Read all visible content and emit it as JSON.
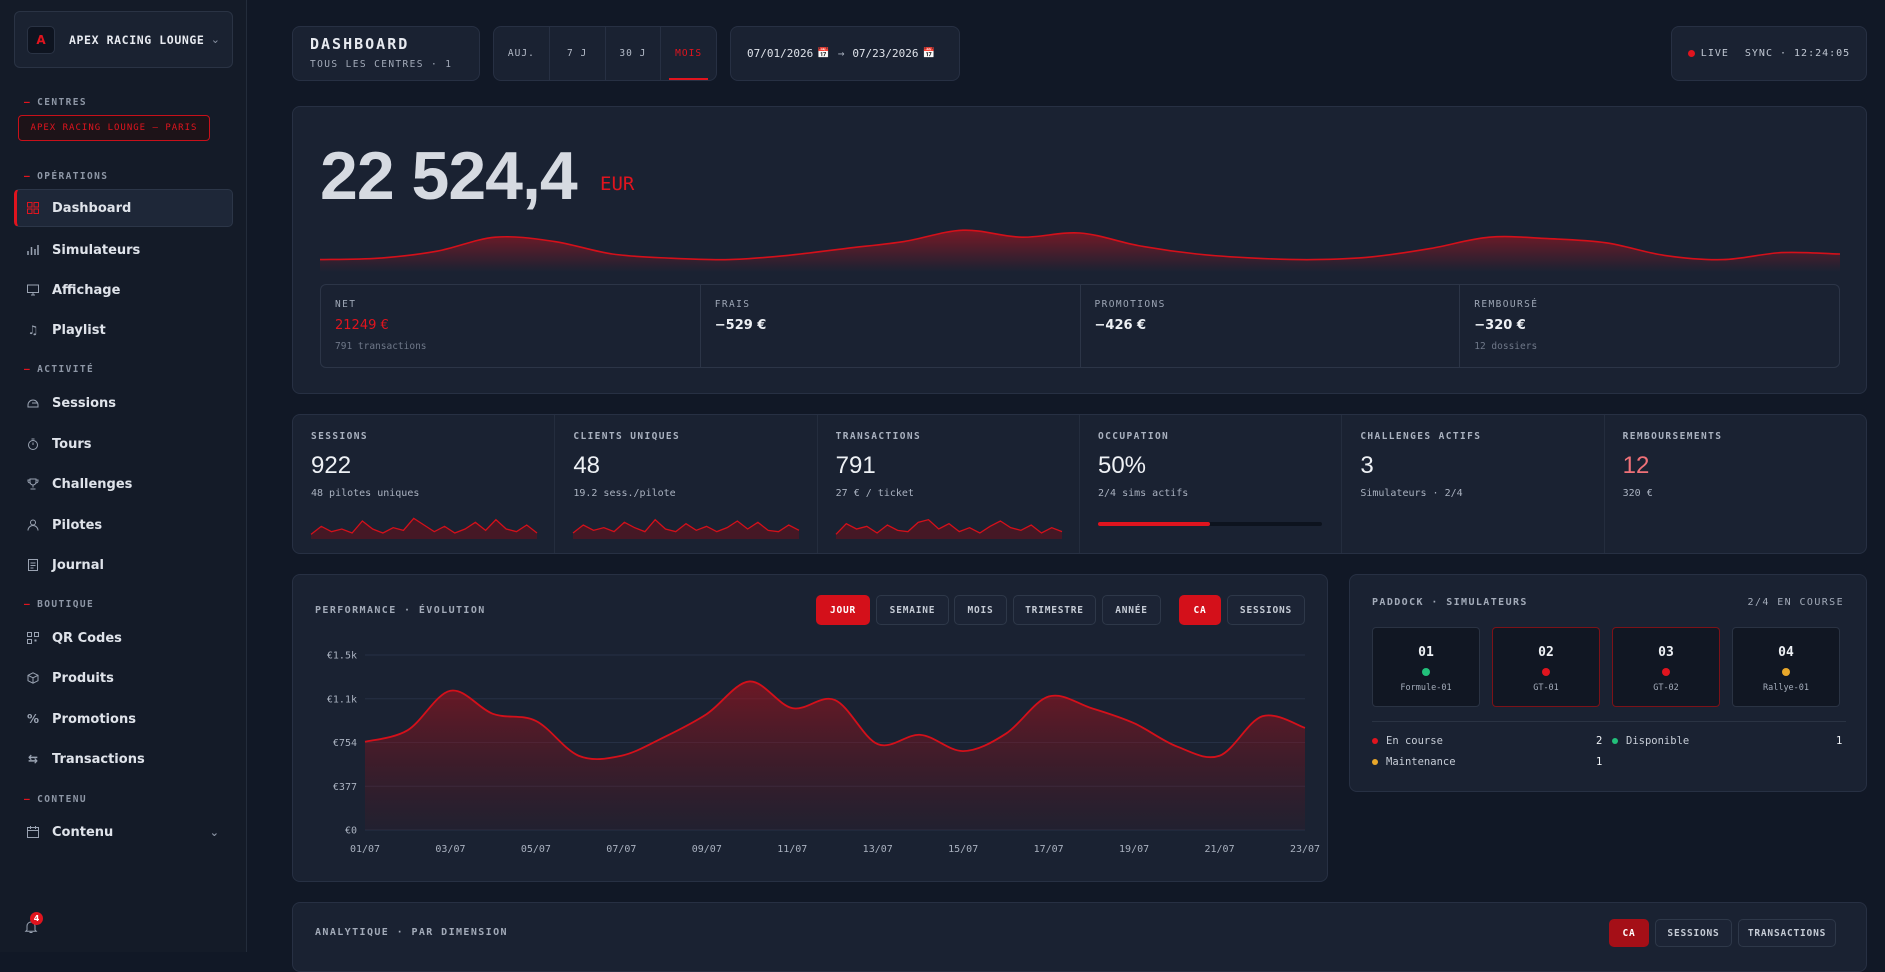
{
  "brand": {
    "logo": "A",
    "name": "APEX RACING LOUNGE"
  },
  "sidebar": {
    "sections": {
      "centres": "CENTRES",
      "operations": "OPÉRATIONS",
      "activite": "ACTIVITÉ",
      "boutique": "BOUTIQUE",
      "contenu": "CONTENU"
    },
    "centre_chip": "APEX RACING LOUNGE — PARIS",
    "items": [
      {
        "label": "Dashboard",
        "icon": "grid-icon"
      },
      {
        "label": "Simulateurs",
        "icon": "bars-icon"
      },
      {
        "label": "Affichage",
        "icon": "monitor-icon"
      },
      {
        "label": "Playlist",
        "icon": "music-icon"
      },
      {
        "label": "Sessions",
        "icon": "helmet-icon"
      },
      {
        "label": "Tours",
        "icon": "stopwatch-icon"
      },
      {
        "label": "Challenges",
        "icon": "trophy-icon"
      },
      {
        "label": "Pilotes",
        "icon": "user-icon"
      },
      {
        "label": "Journal",
        "icon": "document-icon"
      },
      {
        "label": "QR Codes",
        "icon": "qr-icon"
      },
      {
        "label": "Produits",
        "icon": "box-icon"
      },
      {
        "label": "Promotions",
        "icon": "percent-icon"
      },
      {
        "label": "Transactions",
        "icon": "swap-icon"
      },
      {
        "label": "Contenu",
        "icon": "calendar-icon"
      }
    ],
    "notifications": "4"
  },
  "header": {
    "title": "DASHBOARD",
    "subtitle": "TOUS LES CENTRES · 1",
    "periods": [
      "AUJ.",
      "7 J",
      "30 J",
      "MOIS"
    ],
    "active_period": "MOIS",
    "date_from": "07/01/2026",
    "date_to": "07/23/2026",
    "arrow": "→",
    "live": "LIVE",
    "sync": "SYNC · 12:24:05"
  },
  "hero": {
    "total": "22 524,4",
    "currency": "EUR",
    "spark": [
      6,
      7,
      12,
      22,
      19,
      10,
      7,
      6,
      9,
      14,
      19,
      27,
      22,
      25,
      16,
      10,
      7,
      6,
      8,
      14,
      22,
      21,
      18,
      9,
      6,
      11,
      10
    ],
    "stats": [
      {
        "label": "NET",
        "value": "21249 €",
        "sub": "791 transactions"
      },
      {
        "label": "FRAIS",
        "value": "−529 €",
        "sub": ""
      },
      {
        "label": "PROMOTIONS",
        "value": "−426 €",
        "sub": ""
      },
      {
        "label": "REMBOURSÉ",
        "value": "−320 €",
        "sub": "12 dossiers"
      }
    ]
  },
  "kpis": [
    {
      "label": "SESSIONS",
      "value": "922",
      "sub": "48 pilotes uniques",
      "spark": [
        2,
        8,
        4,
        6,
        3,
        12,
        6,
        3,
        7,
        5,
        14,
        9,
        4,
        8,
        3,
        6,
        11,
        5,
        13,
        6,
        4,
        9,
        3
      ]
    },
    {
      "label": "CLIENTS UNIQUES",
      "value": "48",
      "sub": "19.2 sess./pilote",
      "spark": [
        3,
        9,
        5,
        7,
        4,
        11,
        7,
        4,
        13,
        6,
        4,
        10,
        5,
        8,
        4,
        7,
        12,
        6,
        11,
        5,
        4,
        9,
        5
      ]
    },
    {
      "label": "TRANSACTIONS",
      "value": "791",
      "sub": "27 € / ticket",
      "spark": [
        2,
        10,
        6,
        8,
        3,
        9,
        5,
        4,
        11,
        13,
        6,
        10,
        4,
        7,
        3,
        8,
        12,
        7,
        5,
        9,
        3,
        7,
        4
      ]
    },
    {
      "label": "OCCUPATION",
      "value": "50%",
      "sub": "2/4 sims actifs",
      "progress": 0.5
    },
    {
      "label": "CHALLENGES ACTIFS",
      "value": "3",
      "sub": "Simulateurs · 2/4"
    },
    {
      "label": "REMBOURSEMENTS",
      "value": "12",
      "sub": "320 €"
    }
  ],
  "performance": {
    "title": "PERFORMANCE · ÉVOLUTION",
    "granularity": [
      "JOUR",
      "SEMAINE",
      "MOIS",
      "TRIMESTRE",
      "ANNÉE"
    ],
    "active_granularity": "JOUR",
    "metrics": [
      "CA",
      "SESSIONS"
    ],
    "active_metric": "CA"
  },
  "chart_data": {
    "type": "area",
    "x": [
      "01/07",
      "02/07",
      "03/07",
      "04/07",
      "05/07",
      "06/07",
      "07/07",
      "08/07",
      "09/07",
      "10/07",
      "11/07",
      "12/07",
      "13/07",
      "14/07",
      "15/07",
      "16/07",
      "17/07",
      "18/07",
      "19/07",
      "20/07",
      "21/07",
      "22/07",
      "23/07"
    ],
    "x_tick_labels": [
      "01/07",
      "03/07",
      "05/07",
      "07/07",
      "09/07",
      "11/07",
      "13/07",
      "15/07",
      "17/07",
      "19/07",
      "21/07",
      "23/07"
    ],
    "series": [
      {
        "values": [
          760,
          860,
          1200,
          1000,
          940,
          640,
          640,
          800,
          1000,
          1280,
          1050,
          1120,
          740,
          820,
          680,
          830,
          1150,
          1050,
          920,
          720,
          640,
          980,
          880
        ]
      }
    ],
    "y_tick_labels": [
      "€0",
      "€377",
      "€754",
      "€1.1k",
      "€1.5k"
    ],
    "ylim": [
      0,
      1508
    ],
    "grid": true,
    "color": "#d4101a"
  },
  "paddock": {
    "title": "PADDOCK · SIMULATEURS",
    "status": "2/4 EN COURSE",
    "sims": [
      {
        "num": "01",
        "name": "Formule-01",
        "state": "available"
      },
      {
        "num": "02",
        "name": "GT-01",
        "state": "running"
      },
      {
        "num": "03",
        "name": "GT-02",
        "state": "running"
      },
      {
        "num": "04",
        "name": "Rallye-01",
        "state": "maintenance"
      }
    ],
    "legend": [
      {
        "label": "En course",
        "count": "2",
        "color": "#e0141e"
      },
      {
        "label": "Disponible",
        "count": "1",
        "color": "#22c07a"
      },
      {
        "label": "Maintenance",
        "count": "1",
        "color": "#e8a72a"
      }
    ]
  },
  "analytique": {
    "title": "ANALYTIQUE · PAR DIMENSION",
    "tabs": [
      "CA",
      "SESSIONS",
      "TRANSACTIONS"
    ],
    "active_tab": "CA"
  },
  "colors": {
    "accent": "#e0141e",
    "bg": "#111826",
    "card": "#1a2232",
    "available": "#22c07a",
    "maintenance": "#e8a72a"
  }
}
